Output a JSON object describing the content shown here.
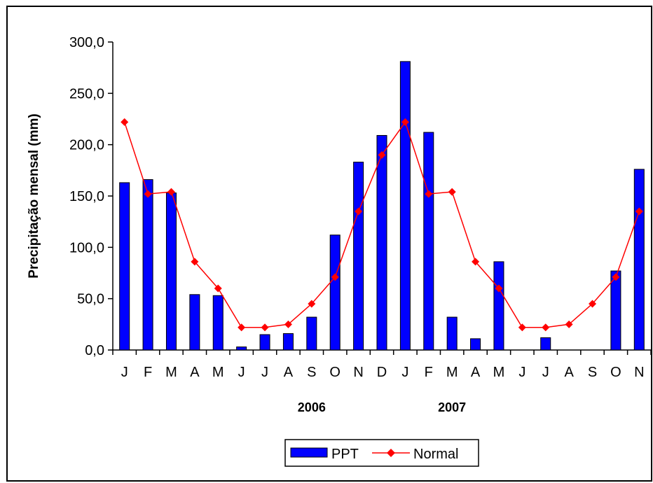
{
  "chart_data": {
    "type": "bar",
    "categories": [
      "J",
      "F",
      "M",
      "A",
      "M",
      "J",
      "J",
      "A",
      "S",
      "O",
      "N",
      "D",
      "J",
      "F",
      "M",
      "A",
      "M",
      "J",
      "J",
      "A",
      "S",
      "O",
      "N"
    ],
    "groups": [
      "2006",
      "2007"
    ],
    "series": [
      {
        "name": "PPT",
        "type": "bar",
        "color": "#0000ff",
        "values": [
          163,
          166,
          153,
          54,
          53,
          3,
          15,
          16,
          32,
          112,
          183,
          209,
          281,
          212,
          32,
          11,
          86,
          0,
          12,
          0,
          0,
          77,
          176
        ]
      },
      {
        "name": "Normal",
        "type": "line",
        "color": "#ff0000",
        "values": [
          222,
          152,
          154,
          86,
          60,
          22,
          22,
          25,
          45,
          71,
          135,
          190,
          222,
          152,
          154,
          86,
          60,
          22,
          22,
          25,
          45,
          71,
          135
        ]
      }
    ],
    "ylabel": "Precipitação mensal (mm)",
    "xlabel": "",
    "ylim": [
      0,
      300
    ],
    "yticks": [
      "0,0",
      "50,0",
      "100,0",
      "150,0",
      "200,0",
      "250,0",
      "300,0"
    ],
    "grid": false,
    "legend": "bottom-center"
  }
}
